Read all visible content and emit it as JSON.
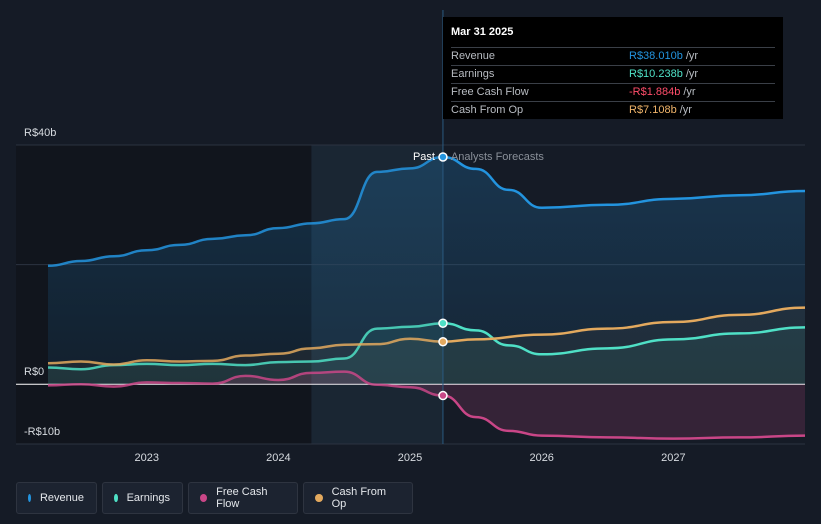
{
  "tooltip": {
    "date": "Mar 31 2025",
    "rows": [
      {
        "label": "Revenue",
        "value": "R$38.010b",
        "unit": "/yr",
        "color": "#2394df"
      },
      {
        "label": "Earnings",
        "value": "R$10.238b",
        "unit": "/yr",
        "color": "#4fe0c6"
      },
      {
        "label": "Free Cash Flow",
        "value": "-R$1.884b",
        "unit": "/yr",
        "color": "#ff4d6a"
      },
      {
        "label": "Cash From Op",
        "value": "R$7.108b",
        "unit": "/yr",
        "color": "#f0b46a"
      }
    ]
  },
  "legend": [
    {
      "label": "Revenue",
      "color": "#2394df"
    },
    {
      "label": "Earnings",
      "color": "#4fe0c6"
    },
    {
      "label": "Free Cash Flow",
      "color": "#c94687"
    },
    {
      "label": "Cash From Op",
      "color": "#e3a95e"
    }
  ],
  "chart_data": {
    "type": "line",
    "title": "",
    "xlabel": "",
    "ylabel": "",
    "ylim": [
      -10,
      40
    ],
    "xlim": [
      2022.25,
      2028.0
    ],
    "y_ticks": [
      {
        "value": 40,
        "label": "R$40b"
      },
      {
        "value": 0,
        "label": "R$0"
      },
      {
        "value": -10,
        "label": "-R$10b"
      }
    ],
    "x_ticks": [
      {
        "value": 2023,
        "label": "2023"
      },
      {
        "value": 2024,
        "label": "2024"
      },
      {
        "value": 2025,
        "label": "2025"
      },
      {
        "value": 2026,
        "label": "2026"
      },
      {
        "value": 2027,
        "label": "2027"
      }
    ],
    "divider_x": 2025.25,
    "divider_label_past": "Past",
    "divider_label_forecast": "Analysts Forecasts",
    "past_shade_start": 2024.25,
    "grid": true,
    "series": [
      {
        "name": "Revenue",
        "color": "#2394df",
        "past": [
          [
            2022.25,
            19.8
          ],
          [
            2022.5,
            20.6
          ],
          [
            2022.75,
            21.4
          ],
          [
            2023.0,
            22.4
          ],
          [
            2023.25,
            23.3
          ],
          [
            2023.5,
            24.3
          ],
          [
            2023.75,
            24.9
          ],
          [
            2024.0,
            26.1
          ],
          [
            2024.25,
            26.9
          ],
          [
            2024.5,
            27.6
          ],
          [
            2024.75,
            35.5
          ],
          [
            2025.0,
            36.1
          ],
          [
            2025.25,
            38.0
          ]
        ],
        "forecast": [
          [
            2025.25,
            38.0
          ],
          [
            2025.5,
            36.0
          ],
          [
            2025.75,
            32.5
          ],
          [
            2026.0,
            29.5
          ],
          [
            2026.5,
            30.0
          ],
          [
            2027.0,
            31.0
          ],
          [
            2027.5,
            31.6
          ],
          [
            2028.0,
            32.3
          ]
        ]
      },
      {
        "name": "Earnings",
        "color": "#4fe0c6",
        "past": [
          [
            2022.25,
            2.8
          ],
          [
            2022.5,
            2.5
          ],
          [
            2022.75,
            3.2
          ],
          [
            2023.0,
            3.4
          ],
          [
            2023.25,
            3.2
          ],
          [
            2023.5,
            3.4
          ],
          [
            2023.75,
            3.2
          ],
          [
            2024.0,
            3.7
          ],
          [
            2024.25,
            3.8
          ],
          [
            2024.5,
            4.3
          ],
          [
            2024.75,
            9.3
          ],
          [
            2025.0,
            9.6
          ],
          [
            2025.25,
            10.2
          ]
        ],
        "forecast": [
          [
            2025.25,
            10.2
          ],
          [
            2025.5,
            9.0
          ],
          [
            2025.75,
            6.5
          ],
          [
            2026.0,
            5.0
          ],
          [
            2026.5,
            6.0
          ],
          [
            2027.0,
            7.5
          ],
          [
            2027.5,
            8.5
          ],
          [
            2028.0,
            9.5
          ]
        ]
      },
      {
        "name": "Free Cash Flow",
        "color": "#c94687",
        "past": [
          [
            2022.25,
            -0.2
          ],
          [
            2022.5,
            0.0
          ],
          [
            2022.75,
            -0.4
          ],
          [
            2023.0,
            0.3
          ],
          [
            2023.25,
            0.2
          ],
          [
            2023.5,
            0.1
          ],
          [
            2023.75,
            1.4
          ],
          [
            2024.0,
            0.7
          ],
          [
            2024.25,
            1.9
          ],
          [
            2024.5,
            2.1
          ],
          [
            2024.75,
            -0.1
          ],
          [
            2025.0,
            -0.5
          ],
          [
            2025.25,
            -1.9
          ]
        ],
        "forecast": [
          [
            2025.25,
            -1.9
          ],
          [
            2025.5,
            -5.5
          ],
          [
            2025.75,
            -7.8
          ],
          [
            2026.0,
            -8.6
          ],
          [
            2026.5,
            -8.9
          ],
          [
            2027.0,
            -9.1
          ],
          [
            2027.5,
            -8.9
          ],
          [
            2028.0,
            -8.6
          ]
        ]
      },
      {
        "name": "Cash From Op",
        "color": "#e3a95e",
        "past": [
          [
            2022.25,
            3.5
          ],
          [
            2022.5,
            3.8
          ],
          [
            2022.75,
            3.3
          ],
          [
            2023.0,
            4.0
          ],
          [
            2023.25,
            3.8
          ],
          [
            2023.5,
            3.9
          ],
          [
            2023.75,
            4.8
          ],
          [
            2024.0,
            5.1
          ],
          [
            2024.25,
            6.0
          ],
          [
            2024.5,
            6.6
          ],
          [
            2024.75,
            6.7
          ],
          [
            2025.0,
            7.6
          ],
          [
            2025.25,
            7.1
          ]
        ],
        "forecast": [
          [
            2025.25,
            7.1
          ],
          [
            2025.5,
            7.5
          ],
          [
            2026.0,
            8.3
          ],
          [
            2026.5,
            9.3
          ],
          [
            2027.0,
            10.4
          ],
          [
            2027.5,
            11.6
          ],
          [
            2028.0,
            12.8
          ]
        ]
      }
    ]
  }
}
